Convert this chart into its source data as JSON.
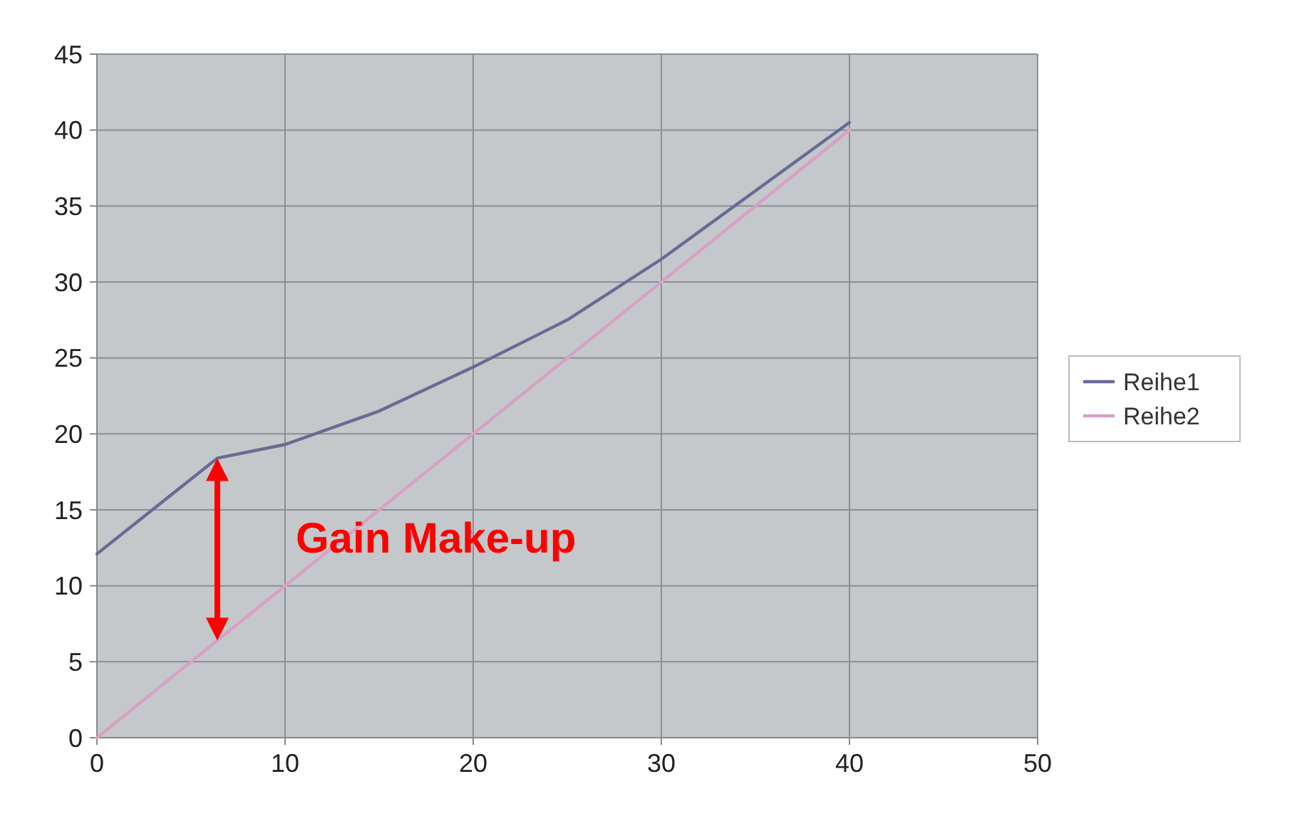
{
  "chart_data": {
    "type": "line",
    "xlim": [
      0,
      50
    ],
    "xticks": [
      0,
      10,
      20,
      30,
      40,
      50
    ],
    "ylim": [
      0,
      45
    ],
    "yticks": [
      0,
      5,
      10,
      15,
      20,
      25,
      30,
      35,
      40,
      45
    ],
    "grid": true,
    "legend": "right",
    "marker": "none",
    "series": [
      {
        "name": "Reihe1",
        "color": "#6a6a96",
        "x": [
          0,
          6.4,
          10,
          15,
          20,
          25,
          30,
          35,
          40
        ],
        "values": [
          12.1,
          18.4,
          19.3,
          21.5,
          24.4,
          27.5,
          31.5,
          36,
          40.5
        ]
      },
      {
        "name": "Reihe2",
        "color": "#d8a0c4",
        "x": [
          0,
          40
        ],
        "values": [
          0,
          40
        ]
      }
    ],
    "annotations": [
      "Gain Make-up"
    ]
  }
}
